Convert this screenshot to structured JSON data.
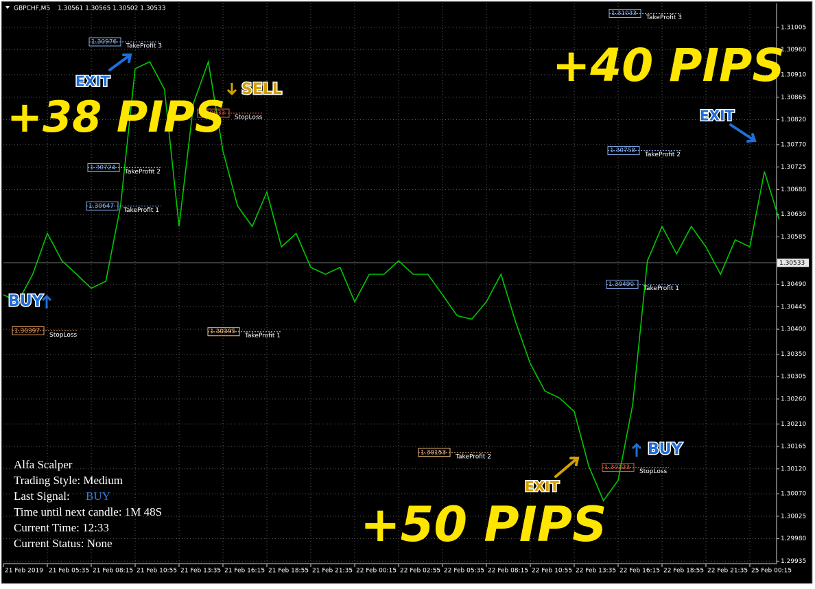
{
  "chart_data": {
    "type": "line",
    "title": "GBPCHF,M5",
    "quote": "1.30561 1.30565 1.30502 1.30533",
    "color": "#00c800",
    "grid": true,
    "categories": [
      "21 Feb 2019",
      null,
      null,
      "21 Feb 05:35",
      null,
      null,
      "21 Feb 08:15",
      null,
      null,
      "21 Feb 10:55",
      null,
      null,
      "21 Feb 13:35",
      null,
      null,
      "21 Feb 16:15",
      null,
      null,
      "21 Feb 18:55",
      null,
      null,
      "21 Feb 21:35",
      null,
      null,
      "22 Feb 00:15",
      null,
      null,
      "22 Feb 02:55",
      null,
      null,
      "22 Feb 05:35",
      null,
      null,
      "22 Feb 08:15",
      null,
      null,
      "22 Feb 10:55",
      null,
      null,
      "22 Feb 13:35",
      null,
      null,
      "22 Feb 16:15",
      null,
      null,
      "22 Feb 18:55",
      null,
      null,
      "22 Feb 21:35",
      null,
      null,
      "25 Feb 00:15",
      null,
      null
    ],
    "values": [
      1.30469,
      1.30455,
      1.3051,
      1.30592,
      1.30537,
      1.3051,
      1.30482,
      1.30496,
      1.30647,
      1.30922,
      1.30936,
      1.30881,
      1.30606,
      1.30854,
      1.30936,
      1.30757,
      1.30647,
      1.30606,
      1.30675,
      1.30565,
      1.30592,
      1.30524,
      1.3051,
      1.30524,
      1.30455,
      1.3051,
      1.3051,
      1.30537,
      1.3051,
      1.3051,
      1.30469,
      1.30427,
      1.3042,
      1.30455,
      1.3051,
      1.30414,
      1.30331,
      1.30276,
      1.30262,
      1.30235,
      1.30125,
      1.30056,
      1.30097,
      1.30249,
      1.30537,
      1.30606,
      1.30551,
      1.30606,
      1.30565,
      1.3051,
      1.30579,
      1.30565,
      1.30716,
      1.3062
    ],
    "ylim": [
      1.2993,
      1.31053
    ],
    "yticks": [
      {
        "value": 1.31005,
        "label": "1.31005"
      },
      {
        "value": 1.3096,
        "label": "1.30960"
      },
      {
        "value": 1.3091,
        "label": "1.30910"
      },
      {
        "value": 1.30865,
        "label": "1.30865"
      },
      {
        "value": 1.3082,
        "label": "1.30820"
      },
      {
        "value": 1.3077,
        "label": "1.30770"
      },
      {
        "value": 1.30725,
        "label": "1.30725"
      },
      {
        "value": 1.3068,
        "label": "1.30680"
      },
      {
        "value": 1.3063,
        "label": "1.30630"
      },
      {
        "value": 1.30585,
        "label": "1.30585"
      },
      {
        "value": 1.3049,
        "label": "1.30490"
      },
      {
        "value": 1.30445,
        "label": "1.30445"
      },
      {
        "value": 1.304,
        "label": "1.30400"
      },
      {
        "value": 1.3035,
        "label": "1.30350"
      },
      {
        "value": 1.30305,
        "label": "1.30305"
      },
      {
        "value": 1.3026,
        "label": "1.30260"
      },
      {
        "value": 1.3021,
        "label": "1.30210"
      },
      {
        "value": 1.30165,
        "label": "1.30165"
      },
      {
        "value": 1.3012,
        "label": "1.30120"
      },
      {
        "value": 1.3007,
        "label": "1.30070"
      },
      {
        "value": 1.30025,
        "label": "1.30025"
      },
      {
        "value": 1.2998,
        "label": "1.29980"
      },
      {
        "value": 1.29935,
        "label": "1.29935"
      }
    ],
    "current_price": {
      "value": 1.30533,
      "label": "1.30533"
    },
    "levels": [
      {
        "value": 1.30976,
        "label": "1.30976",
        "tag": "TakeProfit 3",
        "color": "#8ab4f8"
      },
      {
        "value": 1.30724,
        "label": "1.30724",
        "tag": "TakeProfit 2",
        "color": "#8ab4f8"
      },
      {
        "value": 1.30647,
        "label": "1.30647",
        "tag": "TakeProfit 1",
        "color": "#8ab4f8"
      },
      {
        "value": 1.30397,
        "label": "1.30397",
        "tag": "StopLoss",
        "color": "#f4a460"
      },
      {
        "value": 1.30833,
        "label": "1.30833",
        "tag": "StopLoss",
        "color": "#e06040"
      },
      {
        "value": 1.30395,
        "label": "1.30395",
        "tag": "TakeProfit 1",
        "color": "#f4c080"
      },
      {
        "value": 1.31033,
        "label": "1.31033",
        "tag": "TakeProfit 3",
        "color": "#8ab4f8"
      },
      {
        "value": 1.30758,
        "label": "1.30758",
        "tag": "TakeProfit 2",
        "color": "#8ab4f8"
      },
      {
        "value": 1.3049,
        "label": "1.30490",
        "tag": "TakeProfit 1",
        "color": "#8ab4f8"
      },
      {
        "value": 1.30153,
        "label": "1.30153",
        "tag": "TakeProfit 2",
        "color": "#f4c080"
      },
      {
        "value": 1.30123,
        "label": "1.30123",
        "tag": "StopLoss",
        "color": "#e06040"
      }
    ],
    "signals": [
      {
        "text": "BUY",
        "color": "#1e6fd9"
      },
      {
        "text": "SELL",
        "color": "#d4a000"
      },
      {
        "text": "BUY",
        "color": "#1e6fd9"
      }
    ],
    "exits": [
      {
        "text": "EXIT",
        "color": "#1e6fd9"
      },
      {
        "text": "EXIT",
        "color": "#1e6fd9"
      },
      {
        "text": "EXIT",
        "color": "#d4a000"
      }
    ],
    "results": [
      "+38 PIPS",
      "+40 PIPS",
      "+50 PIPS"
    ],
    "info_panel": {
      "name": "Alfa Scalper",
      "style": "Trading Style: Medium",
      "signal_label": "Last Signal:",
      "signal_value": "BUY",
      "signal_color": "#3a7fd5",
      "timer": "Time until next candle: 1M 48S",
      "time": "Current Time: 12:33",
      "status": "Current Status: None"
    }
  }
}
